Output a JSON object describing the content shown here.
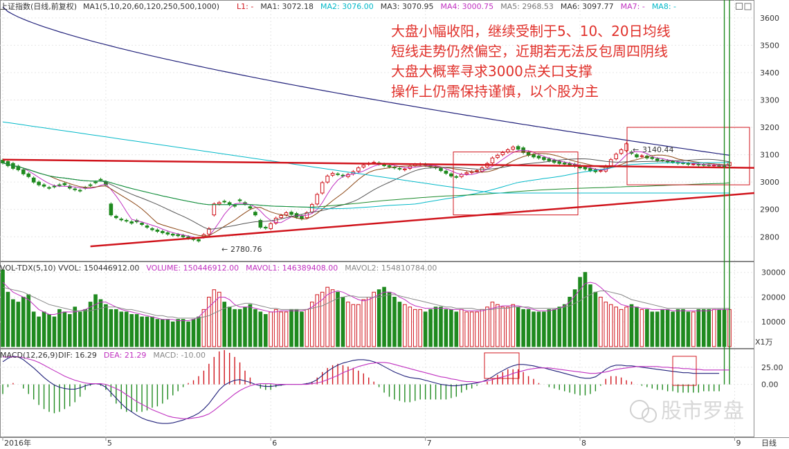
{
  "price_header": {
    "title": "上证指数(日线,前复权)",
    "ma_spec": "MA1(5,10,20,60,120,250,500,1000)",
    "items": [
      {
        "label": "L1: -",
        "color": "#d0141c"
      },
      {
        "label": "MA1: 3072.18",
        "color": "#333333"
      },
      {
        "label": "MA2: 3076.00",
        "color": "#00b8c8"
      },
      {
        "label": "MA3: 3070.95",
        "color": "#333333"
      },
      {
        "label": "MA4: 3000.75",
        "color": "#c030c0"
      },
      {
        "label": "MA5: 2968.53",
        "color": "#777777"
      },
      {
        "label": "MA6: 3097.77",
        "color": "#333333"
      },
      {
        "label": "MA7: -",
        "color": "#c030c0"
      },
      {
        "label": "MA8: -",
        "color": "#00b8c8"
      }
    ]
  },
  "volume_header": {
    "title": "VOL-TDX(5,10)",
    "items": [
      {
        "label": "VVOL: 150446912.00",
        "color": "#333333"
      },
      {
        "label": "VOLUME: 150446912.00",
        "color": "#c030c0"
      },
      {
        "label": "MAVOL1: 146389408.00",
        "color": "#c030c0"
      },
      {
        "label": "MAVOL2: 154810784.00",
        "color": "#888888"
      }
    ]
  },
  "macd_header": {
    "title": "MACD(12,26,9)",
    "items": [
      {
        "label": "DIF: 16.29",
        "color": "#333333"
      },
      {
        "label": "DEA: 21.29",
        "color": "#c030c0"
      },
      {
        "label": "MACD: -10.00",
        "color": "#888888"
      }
    ]
  },
  "annotations": [
    "大盘小幅收阳，继续受制于5、10、20日均线",
    "短线走势仍然偏空，近期若无法反包周四阴线",
    "大盘大概率寻求3000点关口支撑",
    "操作上仍需保持谨慎，以个股为主"
  ],
  "watermark": "股市罗盘",
  "period_label": "日线",
  "volume_unit": "X1万",
  "low_marker": "2780.76",
  "high_marker": "3140.44",
  "chart_data": [
    {
      "type": "candlestick",
      "panel": "price",
      "y_ticks": [
        2800,
        2900,
        3000,
        3100,
        3200,
        3300,
        3400,
        3500,
        3600
      ],
      "ylim": [
        2730,
        3640
      ],
      "x_ticks": [
        "2016年",
        "5",
        "6",
        "7",
        "8",
        "9"
      ],
      "x_tick_index": [
        0,
        20,
        52,
        82,
        112,
        142
      ],
      "open": [
        3080,
        3075,
        3068,
        3058,
        3045,
        3030,
        3015,
        3000,
        2990,
        2980,
        2985,
        2990,
        2995,
        2985,
        2975,
        2970,
        2980,
        2990,
        3000,
        3010,
        3000,
        2920,
        2875,
        2865,
        2860,
        2855,
        2860,
        2850,
        2840,
        2830,
        2825,
        2820,
        2815,
        2810,
        2808,
        2805,
        2800,
        2795,
        2790,
        2800,
        2810,
        2880,
        2920,
        2930,
        2925,
        2915,
        2935,
        2925,
        2910,
        2890,
        2860,
        2835,
        2830,
        2850,
        2870,
        2880,
        2890,
        2885,
        2875,
        2870,
        2890,
        2920,
        2960,
        3000,
        3025,
        3030,
        3025,
        3020,
        3030,
        3040,
        3055,
        3065,
        3070,
        3070,
        3065,
        3060,
        3055,
        3050,
        3045,
        3050,
        3060,
        3065,
        3065,
        3060,
        3055,
        3050,
        3040,
        3030,
        3020,
        3020,
        3030,
        3035,
        3040,
        3040,
        3055,
        3070,
        3090,
        3100,
        3110,
        3120,
        3130,
        3125,
        3110,
        3100,
        3095,
        3090,
        3085,
        3080,
        3075,
        3070,
        3068,
        3065,
        3060,
        3055,
        3050,
        3045,
        3040,
        3040,
        3060,
        3085,
        3105,
        3115,
        3110,
        3100,
        3095,
        3095,
        3090,
        3085,
        3080,
        3078,
        3075,
        3072,
        3070,
        3068,
        3066,
        3065,
        3064,
        3063,
        3062,
        3061,
        3060,
        3060
      ],
      "close": [
        3070,
        3060,
        3050,
        3045,
        3030,
        3020,
        3000,
        2990,
        2985,
        2978,
        2983,
        2988,
        2990,
        2978,
        2972,
        2968,
        2978,
        2988,
        2998,
        3008,
        2990,
        2880,
        2870,
        2862,
        2858,
        2850,
        2855,
        2845,
        2835,
        2826,
        2820,
        2815,
        2810,
        2806,
        2804,
        2800,
        2795,
        2790,
        2785,
        2808,
        2830,
        2920,
        2925,
        2928,
        2918,
        2912,
        2932,
        2920,
        2905,
        2880,
        2835,
        2832,
        2848,
        2868,
        2878,
        2888,
        2882,
        2872,
        2866,
        2888,
        2918,
        2955,
        2998,
        3022,
        3032,
        3028,
        3022,
        3028,
        3038,
        3052,
        3062,
        3068,
        3072,
        3066,
        3060,
        3056,
        3052,
        3048,
        3048,
        3058,
        3064,
        3066,
        3062,
        3056,
        3052,
        3042,
        3032,
        3022,
        3018,
        3028,
        3034,
        3038,
        3042,
        3052,
        3068,
        3088,
        3098,
        3108,
        3118,
        3128,
        3120,
        3108,
        3098,
        3092,
        3088,
        3082,
        3078,
        3072,
        3068,
        3066,
        3062,
        3058,
        3052,
        3048,
        3042,
        3038,
        3042,
        3058,
        3082,
        3102,
        3118,
        3140,
        3105,
        3092,
        3096,
        3088,
        3086,
        3079,
        3079,
        3074,
        3073,
        3069,
        3069,
        3065,
        3066,
        3063,
        3062,
        3061,
        3062,
        3060,
        3058,
        3072
      ]
    },
    {
      "type": "bar",
      "panel": "volume",
      "unit": "X1万",
      "y_ticks": [
        10000,
        20000,
        30000
      ],
      "ylim": [
        0,
        33000
      ],
      "values": [
        31000,
        22000,
        19000,
        18000,
        20000,
        21000,
        14000,
        12000,
        14000,
        13000,
        12000,
        15000,
        14000,
        13000,
        16000,
        14000,
        15000,
        18000,
        21000,
        19000,
        17000,
        15000,
        15000,
        14000,
        14000,
        13000,
        13000,
        12000,
        12000,
        12000,
        11000,
        11000,
        11000,
        10000,
        11000,
        11000,
        10000,
        11000,
        12000,
        15000,
        20000,
        23000,
        22000,
        18000,
        16000,
        15000,
        15000,
        16000,
        17000,
        15000,
        14000,
        13000,
        14000,
        15000,
        14000,
        14000,
        15000,
        15000,
        14000,
        15000,
        18000,
        21000,
        22000,
        24000,
        23000,
        22000,
        20000,
        18000,
        17000,
        17000,
        19000,
        20000,
        22000,
        23000,
        24000,
        22000,
        20000,
        18000,
        17000,
        16000,
        15000,
        15000,
        14000,
        15000,
        16000,
        16000,
        15000,
        15000,
        14000,
        15000,
        14000,
        14000,
        14000,
        15000,
        16000,
        18000,
        17000,
        16000,
        16000,
        17000,
        16000,
        15000,
        15000,
        14000,
        14000,
        14000,
        15000,
        15000,
        16000,
        17000,
        20000,
        23000,
        28000,
        30000,
        25000,
        22000,
        20000,
        18000,
        17000,
        16000,
        15000,
        16000,
        17000,
        16000,
        15000,
        15000,
        14000,
        14000,
        15000,
        15000,
        14000,
        15000,
        15000,
        14000,
        14000,
        15000,
        15000,
        15000,
        15000,
        15000,
        15000,
        15000
      ],
      "series": [
        {
          "name": "MAVOL1",
          "values": [
            26000,
            24000,
            22000,
            21000,
            20000,
            19000,
            17000,
            15000,
            14000,
            13000,
            13000,
            13500,
            14000,
            14000,
            14000,
            14500,
            15000,
            16000,
            17000,
            18000,
            18000,
            17000,
            16000,
            15000,
            14500,
            14000,
            13500,
            13000,
            12500,
            12000,
            11500,
            11000,
            11000,
            11000,
            10500,
            10500,
            10500,
            11000,
            12000,
            14000,
            16000,
            18000,
            20000,
            20000,
            19000,
            17000,
            16000,
            16000,
            16000,
            15500,
            15000,
            14500,
            14000,
            14000,
            14500,
            14500,
            14500,
            14500,
            14500,
            15000,
            16000,
            17500,
            19000,
            21000,
            22000,
            22500,
            22000,
            21000,
            20000,
            19000,
            18500,
            19000,
            20000,
            21000,
            22000,
            22000,
            21500,
            20000,
            19000,
            17500,
            16500,
            16000,
            15500,
            15500,
            15500,
            15500,
            15500,
            15000,
            15000,
            15000,
            14500,
            14500,
            14500,
            14500,
            15000,
            15500,
            16000,
            16500,
            16500,
            16500,
            16500,
            16000,
            15500,
            15000,
            14500,
            14500,
            14500,
            15000,
            15500,
            16500,
            18000,
            20500,
            23000,
            25500,
            26000,
            25500,
            24000,
            22000,
            20000,
            18500,
            17000,
            16500,
            16000,
            16000,
            15500,
            15500,
            15000,
            15000,
            15000,
            15000,
            14500,
            14500,
            14500,
            14500,
            14500,
            14500,
            14500,
            14500,
            15000,
            15000,
            15000,
            15000
          ]
        },
        {
          "name": "MAVOL2",
          "values": [
            24000,
            23500,
            23000,
            22500,
            22000,
            21000,
            20000,
            19000,
            18000,
            17000,
            16500,
            16000,
            15500,
            15000,
            14500,
            14500,
            14500,
            14500,
            15000,
            15500,
            16000,
            16000,
            16000,
            15500,
            15000,
            15000,
            14500,
            14000,
            13500,
            13000,
            12500,
            12500,
            12000,
            12000,
            11500,
            11500,
            11500,
            11500,
            11500,
            12000,
            12500,
            13500,
            14500,
            15500,
            16000,
            16500,
            17000,
            17500,
            17500,
            17000,
            16500,
            16000,
            15500,
            15500,
            15000,
            15000,
            15000,
            15000,
            15000,
            15000,
            15500,
            16000,
            16500,
            17500,
            18500,
            19500,
            20000,
            20500,
            20500,
            20000,
            20000,
            20000,
            20000,
            20000,
            20500,
            21000,
            21000,
            20500,
            20000,
            19500,
            19000,
            18500,
            18000,
            17500,
            17000,
            16500,
            16000,
            16000,
            15500,
            15500,
            15500,
            15500,
            15000,
            15000,
            15000,
            15000,
            15500,
            15500,
            15500,
            16000,
            16000,
            16000,
            16000,
            15500,
            15500,
            15500,
            15500,
            15500,
            15500,
            16000,
            16500,
            17500,
            18500,
            20000,
            21000,
            22000,
            22500,
            22500,
            22000,
            21500,
            21000,
            20000,
            19000,
            18500,
            18000,
            17500,
            17000,
            16500,
            16000,
            15500,
            15500,
            15500,
            15500,
            15500,
            15500,
            15500,
            15500,
            15500,
            15500,
            15500,
            15500,
            15500
          ]
        }
      ]
    },
    {
      "type": "line",
      "panel": "macd",
      "y_ticks": [
        0.0,
        25.0
      ],
      "ylim": [
        -75,
        50
      ],
      "series": [
        {
          "name": "DIF",
          "values": [
            33,
            38,
            41,
            40,
            36,
            30,
            24,
            17,
            10,
            4,
            -1,
            -4,
            -6,
            -7,
            -7,
            -5,
            -2,
            0,
            1,
            0,
            -4,
            -12,
            -20,
            -28,
            -35,
            -40,
            -45,
            -49,
            -52,
            -54,
            -56,
            -57,
            -57,
            -56,
            -54,
            -52,
            -49,
            -46,
            -42,
            -36,
            -28,
            -18,
            -8,
            -1,
            3,
            6,
            7,
            5,
            3,
            0,
            -2,
            -3,
            -3,
            -2,
            -1,
            0,
            0,
            0,
            0,
            1,
            3,
            7,
            13,
            19,
            24,
            28,
            31,
            33,
            35,
            36,
            36,
            35,
            33,
            30,
            26,
            22,
            18,
            15,
            12,
            10,
            9,
            8,
            6,
            4,
            2,
            0,
            -1,
            -2,
            -2,
            -1,
            0,
            1,
            2,
            4,
            7,
            11,
            16,
            20,
            24,
            27,
            29,
            29,
            28,
            27,
            25,
            24,
            22,
            20,
            18,
            16,
            14,
            12,
            10,
            9,
            9,
            11,
            16,
            22,
            26,
            28,
            28,
            27,
            27,
            26,
            25,
            24,
            23,
            22,
            21,
            20,
            19,
            18,
            17,
            17,
            16,
            16,
            16,
            16,
            16,
            16
          ]
        },
        {
          "name": "DEA",
          "values": [
            40,
            40,
            40,
            40,
            39,
            37,
            35,
            32,
            28,
            24,
            20,
            16,
            12,
            9,
            6,
            4,
            2,
            1,
            1,
            1,
            0,
            -3,
            -6,
            -10,
            -15,
            -20,
            -25,
            -29,
            -33,
            -37,
            -40,
            -43,
            -46,
            -48,
            -49,
            -50,
            -50,
            -49,
            -48,
            -46,
            -43,
            -38,
            -32,
            -26,
            -20,
            -14,
            -9,
            -5,
            -2,
            0,
            1,
            1,
            1,
            0,
            0,
            0,
            0,
            0,
            0,
            0,
            1,
            2,
            4,
            7,
            10,
            13,
            17,
            20,
            23,
            26,
            28,
            30,
            31,
            32,
            32,
            31,
            29,
            27,
            25,
            23,
            21,
            19,
            17,
            15,
            13,
            11,
            10,
            8,
            7,
            5,
            4,
            4,
            3,
            4,
            5,
            7,
            9,
            11,
            13,
            16,
            18,
            20,
            22,
            23,
            24,
            24,
            24,
            23,
            22,
            21,
            20,
            19,
            18,
            17,
            16,
            16,
            17,
            18,
            20,
            22,
            23,
            24,
            25,
            26,
            26,
            26,
            26,
            26,
            25,
            25,
            24,
            24,
            23,
            23,
            22,
            22,
            21,
            21,
            21,
            21,
            21,
            21
          ]
        }
      ],
      "bars_name": "MACD"
    }
  ]
}
